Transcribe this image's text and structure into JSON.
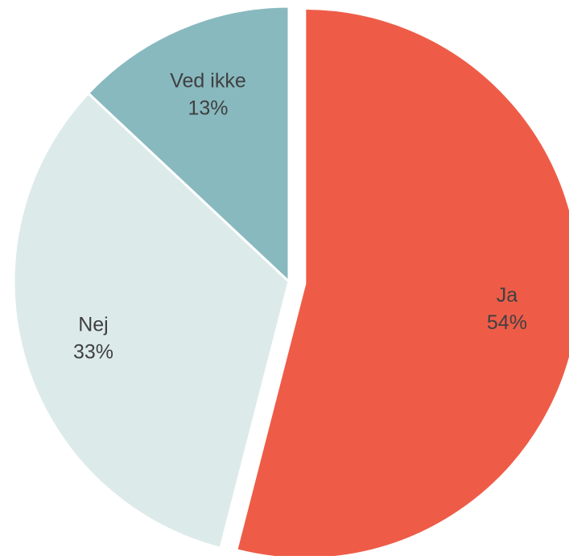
{
  "chart_data": {
    "type": "pie",
    "title": "",
    "slices": [
      {
        "label": "Ja",
        "value": 54,
        "value_label": "54%",
        "color": "#ee5c48",
        "label_color": "#404040",
        "exploded": true
      },
      {
        "label": "Nej",
        "value": 33,
        "value_label": "33%",
        "color": "#dcebea",
        "label_color": "#404040",
        "exploded": false
      },
      {
        "label": "Ved ikke",
        "value": 13,
        "value_label": "13%",
        "color": "#88b9bf",
        "label_color": "#404040",
        "exploded": false
      }
    ],
    "start_angle": "12 o'clock",
    "direction": "clockwise",
    "legend": "none",
    "slice_border_color": "#ffffff"
  }
}
